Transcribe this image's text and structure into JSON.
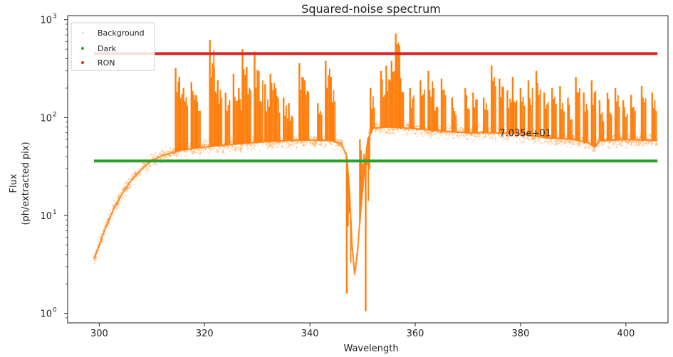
{
  "chart_data": {
    "type": "scatter",
    "title": "Squared-noise spectrum",
    "xlabel": "Wavelength",
    "ylabel_line1": "Flux",
    "ylabel_line2": "(ph/extracted pix)",
    "xlim": [
      294,
      408
    ],
    "ylim": [
      0.8,
      1100
    ],
    "yscale": "log",
    "grid": false,
    "legend_position": "top-left",
    "x_ticks": [
      300,
      320,
      340,
      360,
      380,
      400
    ],
    "x_tick_labels": [
      "300",
      "320",
      "340",
      "360",
      "380",
      "400"
    ],
    "y_ticks": [
      1,
      10,
      100,
      1000
    ],
    "y_tick_bases": [
      "10",
      "10",
      "10",
      "10"
    ],
    "y_tick_exponents": [
      "0",
      "1",
      "2",
      "3"
    ],
    "annotation": {
      "text": "7.035e+01",
      "x": 376,
      "y": 70.35
    },
    "series": [
      {
        "name": "Background",
        "color": "#ff7f0e",
        "kind": "scatter",
        "points": [
          [
            299.0,
            3.6
          ],
          [
            300.0,
            5.0
          ],
          [
            301.0,
            7.0
          ],
          [
            302.0,
            9.5
          ],
          [
            303.0,
            12.5
          ],
          [
            304.0,
            15.5
          ],
          [
            305.0,
            19.0
          ],
          [
            306.0,
            22.5
          ],
          [
            307.0,
            26.0
          ],
          [
            308.0,
            29.5
          ],
          [
            309.0,
            33.0
          ],
          [
            310.0,
            36.5
          ],
          [
            312.0,
            41.0
          ],
          [
            314.0,
            44.0
          ],
          [
            316.0,
            47.0
          ],
          [
            320.0,
            50.0
          ],
          [
            325.0,
            53.0
          ],
          [
            330.0,
            56.0
          ],
          [
            335.0,
            58.0
          ],
          [
            340.0,
            59.0
          ],
          [
            344.0,
            58.0
          ],
          [
            346.0,
            54.0
          ],
          [
            347.0,
            40.0
          ],
          [
            347.5,
            18.0
          ],
          [
            348.0,
            5.0
          ],
          [
            348.5,
            2.5
          ],
          [
            349.0,
            4.0
          ],
          [
            349.5,
            9.0
          ],
          [
            350.0,
            18.0
          ],
          [
            350.5,
            35.0
          ],
          [
            351.0,
            60.0
          ],
          [
            352.0,
            78.0
          ],
          [
            355.0,
            80.0
          ],
          [
            360.0,
            77.0
          ],
          [
            365.0,
            73.0
          ],
          [
            370.0,
            70.0
          ],
          [
            375.0,
            70.0
          ],
          [
            380.0,
            68.0
          ],
          [
            385.0,
            62.0
          ],
          [
            390.0,
            60.0
          ],
          [
            393.0,
            55.0
          ],
          [
            394.0,
            50.0
          ],
          [
            395.0,
            58.0
          ],
          [
            400.0,
            60.0
          ],
          [
            406.0,
            58.0
          ]
        ]
      },
      {
        "name": "Dark",
        "color": "#2ca02c",
        "kind": "constant",
        "value": 36,
        "x_range": [
          299,
          406
        ]
      },
      {
        "name": "RON",
        "color": "#d62728",
        "kind": "constant",
        "value": 450,
        "x_range": [
          299,
          406
        ]
      }
    ],
    "spikes": [
      [
        314.5,
        320
      ],
      [
        315.2,
        260
      ],
      [
        316.0,
        200
      ],
      [
        317.5,
        230
      ],
      [
        318.4,
        170
      ],
      [
        321.0,
        620
      ],
      [
        321.8,
        330
      ],
      [
        322.5,
        240
      ],
      [
        324.0,
        180
      ],
      [
        325.5,
        280
      ],
      [
        326.5,
        200
      ],
      [
        327.2,
        500
      ],
      [
        328.0,
        330
      ],
      [
        329.5,
        470
      ],
      [
        330.3,
        300
      ],
      [
        331.5,
        220
      ],
      [
        332.5,
        280
      ],
      [
        333.5,
        200
      ],
      [
        335.0,
        160
      ],
      [
        336.0,
        140
      ],
      [
        338.0,
        360
      ],
      [
        339.0,
        240
      ],
      [
        341.5,
        140
      ],
      [
        343.0,
        380
      ],
      [
        344.0,
        260
      ],
      [
        347.0,
        1.6
      ],
      [
        349.5,
        60
      ],
      [
        350.6,
        1.05
      ],
      [
        351.5,
        200
      ],
      [
        353.5,
        300
      ],
      [
        354.5,
        340
      ],
      [
        355.5,
        380
      ],
      [
        356.3,
        720
      ],
      [
        357.0,
        300
      ],
      [
        359.0,
        200
      ],
      [
        361.0,
        240
      ],
      [
        362.5,
        300
      ],
      [
        363.5,
        200
      ],
      [
        365.0,
        250
      ],
      [
        367.0,
        160
      ],
      [
        369.5,
        200
      ],
      [
        371.0,
        180
      ],
      [
        373.0,
        160
      ],
      [
        374.5,
        340
      ],
      [
        376.0,
        250
      ],
      [
        377.5,
        190
      ],
      [
        378.5,
        260
      ],
      [
        380.0,
        200
      ],
      [
        381.5,
        240
      ],
      [
        383.0,
        300
      ],
      [
        384.5,
        180
      ],
      [
        386.0,
        200
      ],
      [
        387.5,
        210
      ],
      [
        389.0,
        160
      ],
      [
        390.5,
        260
      ],
      [
        392.0,
        180
      ],
      [
        393.5,
        240
      ],
      [
        395.0,
        150
      ],
      [
        396.5,
        180
      ],
      [
        398.0,
        200
      ],
      [
        399.5,
        150
      ],
      [
        401.0,
        170
      ],
      [
        403.0,
        210
      ],
      [
        405.0,
        180
      ]
    ]
  }
}
